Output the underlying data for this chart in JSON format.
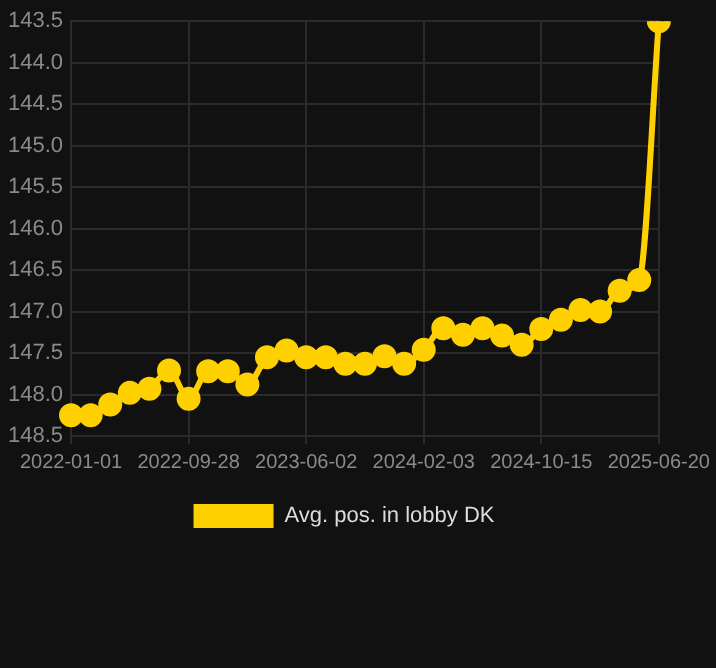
{
  "chart_data": {
    "type": "line",
    "categories": [
      "2022-01-01",
      null,
      null,
      null,
      null,
      null,
      "2022-09-28",
      null,
      null,
      null,
      null,
      null,
      "2023-06-02",
      null,
      null,
      null,
      null,
      null,
      "2024-02-03",
      null,
      null,
      null,
      null,
      null,
      "2024-10-15",
      null,
      null,
      null,
      null,
      null,
      "2025-06-20"
    ],
    "series": [
      {
        "name": "Avg. pos. in lobby DK",
        "color": "#ffd000",
        "values": [
          148.25,
          148.25,
          148.12,
          147.98,
          147.93,
          147.71,
          148.05,
          147.72,
          147.72,
          147.88,
          147.55,
          147.47,
          147.55,
          147.55,
          147.63,
          147.63,
          147.54,
          147.63,
          147.46,
          147.2,
          147.28,
          147.2,
          147.29,
          147.4,
          147.21,
          147.1,
          146.98,
          147.0,
          146.75,
          146.62,
          143.5
        ]
      }
    ],
    "ylim": [
      148.5,
      143.5
    ],
    "yticks": [
      143.5,
      {
        "value": 144,
        "label": "144.0"
      },
      144.5,
      {
        "value": 145,
        "label": "145.0"
      },
      145.5,
      {
        "value": 146,
        "label": "146.0"
      },
      146.5,
      {
        "value": 147,
        "label": "147.0"
      },
      147.5,
      {
        "value": 148,
        "label": "148.0"
      },
      148.5
    ],
    "grid": true,
    "legend": "bottom",
    "marker": "circle",
    "line_style": "solid"
  }
}
